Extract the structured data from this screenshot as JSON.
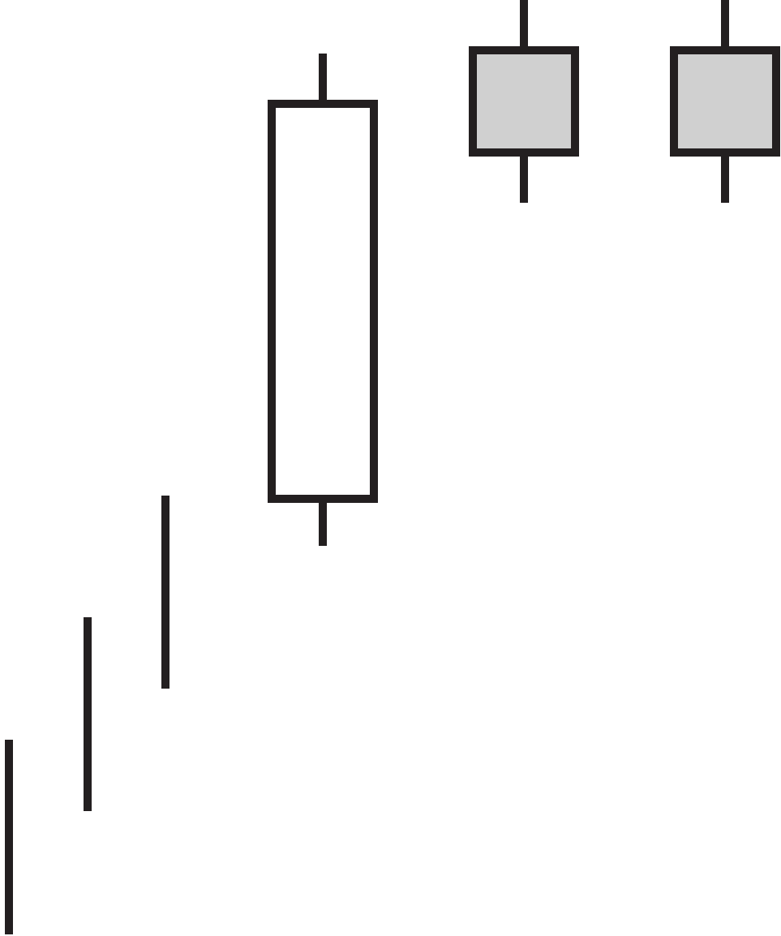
{
  "chart_data": {
    "type": "candlestick",
    "title": "",
    "xlabel": "",
    "ylabel": "",
    "ylim": [
      0,
      1154
    ],
    "grid": false,
    "legend": "none",
    "colors": {
      "stroke": "#231f20",
      "bullish_fill": "#ffffff",
      "bearish_fill": "#d0d0d0"
    },
    "candles": [
      {
        "index": 1,
        "open": 2,
        "high": 242,
        "low": 2,
        "close": 2,
        "kind": "line"
      },
      {
        "index": 2,
        "open": 154,
        "high": 393,
        "low": 154,
        "close": 154,
        "kind": "line"
      },
      {
        "index": 3,
        "open": 305,
        "high": 543,
        "low": 305,
        "close": 305,
        "kind": "line"
      },
      {
        "index": 4,
        "open": 539,
        "high": 1088,
        "low": 481,
        "close": 1026,
        "kind": "bullish"
      },
      {
        "index": 5,
        "open": 1092,
        "high": 1154,
        "low": 904,
        "close": 966,
        "kind": "bearish"
      },
      {
        "index": 6,
        "open": 1092,
        "high": 1154,
        "low": 904,
        "close": 966,
        "kind": "bearish"
      }
    ]
  }
}
